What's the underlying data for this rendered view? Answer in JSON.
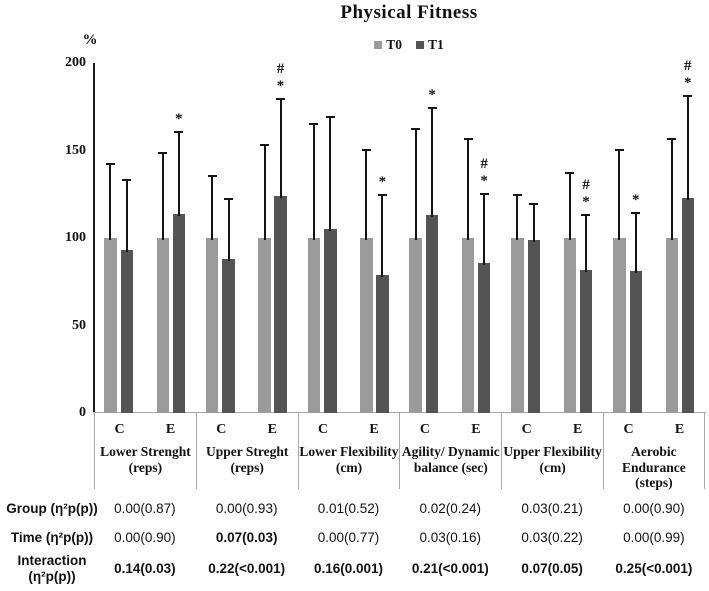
{
  "title": "Physical Fitness",
  "legend": {
    "items": [
      {
        "label": "T0",
        "color": "#9b9b9b"
      },
      {
        "label": "T1",
        "color": "#545454"
      }
    ]
  },
  "axis": {
    "unit_label": "%",
    "ticks": [
      200,
      150,
      100,
      50,
      0
    ],
    "ymin": 0,
    "ymax": 200
  },
  "chart_data": {
    "type": "bar",
    "title": "Physical Fitness",
    "ylabel": "%",
    "ylim": [
      0,
      200
    ],
    "series": [
      "T0",
      "T1"
    ],
    "group_labels": [
      "C",
      "E"
    ],
    "colors": {
      "T0": "#9b9b9b",
      "T1": "#545454"
    },
    "error_bars": "upper only",
    "categories": [
      {
        "name": "Lower Strenght",
        "unit": "(reps)",
        "pairs": [
          {
            "group": "C",
            "t0": {
              "value": 100,
              "err": 143
            },
            "t1": {
              "value": 93,
              "err": 134
            },
            "annotations": []
          },
          {
            "group": "E",
            "t0": {
              "value": 100,
              "err": 149
            },
            "t1": {
              "value": 114,
              "err": 161
            },
            "annotations": [
              "*"
            ]
          }
        ]
      },
      {
        "name": "Upper Streght",
        "unit": "(reps)",
        "pairs": [
          {
            "group": "C",
            "t0": {
              "value": 100,
              "err": 136
            },
            "t1": {
              "value": 88,
              "err": 123
            },
            "annotations": []
          },
          {
            "group": "E",
            "t0": {
              "value": 100,
              "err": 154
            },
            "t1": {
              "value": 124,
              "err": 180
            },
            "annotations": [
              "#",
              "*"
            ]
          }
        ]
      },
      {
        "name": "Lower Flexibility",
        "unit": "(cm)",
        "pairs": [
          {
            "group": "C",
            "t0": {
              "value": 100,
              "err": 166
            },
            "t1": {
              "value": 105,
              "err": 170
            },
            "annotations": []
          },
          {
            "group": "E",
            "t0": {
              "value": 100,
              "err": 151
            },
            "t1": {
              "value": 79,
              "err": 125
            },
            "annotations": [
              "*"
            ]
          }
        ]
      },
      {
        "name": "Agility/ Dynamic",
        "unit": "balance (sec)",
        "pairs": [
          {
            "group": "C",
            "t0": {
              "value": 100,
              "err": 163
            },
            "t1": {
              "value": 113,
              "err": 175
            },
            "annotations": [
              "*"
            ]
          },
          {
            "group": "E",
            "t0": {
              "value": 100,
              "err": 157
            },
            "t1": {
              "value": 86,
              "err": 126
            },
            "annotations": [
              "#",
              "*"
            ]
          }
        ]
      },
      {
        "name": "Upper Flexibility",
        "unit": "(cm)",
        "pairs": [
          {
            "group": "C",
            "t0": {
              "value": 100,
              "err": 125
            },
            "t1": {
              "value": 99,
              "err": 120
            },
            "annotations": []
          },
          {
            "group": "E",
            "t0": {
              "value": 100,
              "err": 138
            },
            "t1": {
              "value": 82,
              "err": 114
            },
            "annotations": [
              "#",
              "*"
            ]
          }
        ]
      },
      {
        "name": "Aerobic",
        "unit": "Endurance (steps)",
        "pairs": [
          {
            "group": "C",
            "t0": {
              "value": 100,
              "err": 151
            },
            "t1": {
              "value": 81,
              "err": 115
            },
            "annotations": [
              "*"
            ]
          },
          {
            "group": "E",
            "t0": {
              "value": 100,
              "err": 157
            },
            "t1": {
              "value": 123,
              "err": 182
            },
            "annotations": [
              "#",
              "*"
            ]
          }
        ]
      }
    ]
  },
  "table": {
    "rows": [
      {
        "label_lines": [
          "Group (η²p(p))"
        ],
        "cells": [
          {
            "text": "0.00(0.87)",
            "bold": false
          },
          {
            "text": "0.00(0.93)",
            "bold": false
          },
          {
            "text": "0.01(0.52)",
            "bold": false
          },
          {
            "text": "0.02(0.24)",
            "bold": false
          },
          {
            "text": "0.03(0.21)",
            "bold": false
          },
          {
            "text": "0.00(0.90)",
            "bold": false
          }
        ]
      },
      {
        "label_lines": [
          "Time (η²p(p))"
        ],
        "cells": [
          {
            "text": "0.00(0.90)",
            "bold": false
          },
          {
            "text": "0.07(0.03)",
            "bold": true
          },
          {
            "text": "0.00(0.77)",
            "bold": false
          },
          {
            "text": "0.03(0.16)",
            "bold": false
          },
          {
            "text": "0.03(0.22)",
            "bold": false
          },
          {
            "text": "0.00(0.99)",
            "bold": false
          }
        ]
      },
      {
        "label_lines": [
          "Interaction",
          "(η²p(p))"
        ],
        "cells": [
          {
            "text": "0.14(0.03)",
            "bold": true
          },
          {
            "text": "0.22(<0.001)",
            "bold": true
          },
          {
            "text": "0.16(0.001)",
            "bold": true
          },
          {
            "text": "0.21(<0.001)",
            "bold": true
          },
          {
            "text": "0.07(0.05)",
            "bold": true
          },
          {
            "text": "0.25(<0.001)",
            "bold": true
          }
        ]
      }
    ]
  }
}
